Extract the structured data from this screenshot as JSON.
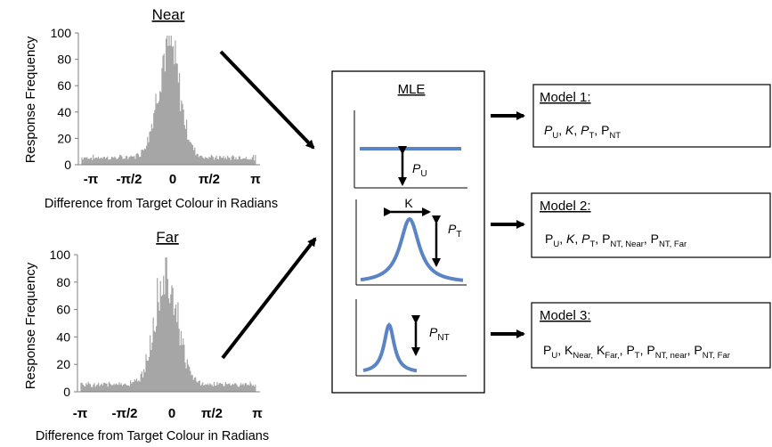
{
  "histograms": [
    {
      "title": "Near",
      "ylabel": "Response Frequency",
      "xlabel": "Difference from Target Colour in Radians",
      "yticks": [
        "0",
        "20",
        "40",
        "60",
        "80",
        "100"
      ],
      "xticks": [
        "-π",
        "-π/2",
        "0",
        "π/2",
        "π"
      ]
    },
    {
      "title": "Far",
      "ylabel": "Response Frequency",
      "xlabel": "Difference from Target Colour in Radians",
      "yticks": [
        "0",
        "20",
        "40",
        "60",
        "80",
        "100"
      ],
      "xticks": [
        "-π",
        "-π/2",
        "0",
        "π/2",
        "π"
      ]
    }
  ],
  "mle": {
    "title": "MLE",
    "k_label": "K",
    "pu_main": "P",
    "pu_sub": "U",
    "pt_main": "P",
    "pt_sub": "T",
    "pnt_main": "P",
    "pnt_sub": "NT"
  },
  "models": [
    {
      "title": "Model 1:",
      "params": [
        {
          "main": "P",
          "sub": "U",
          "italic": true,
          "sep": ", "
        },
        {
          "main": "K",
          "sub": "",
          "italic": true,
          "sep": ", "
        },
        {
          "main": "P",
          "sub": "T",
          "italic": true,
          "sep": ", "
        },
        {
          "main": "P",
          "sub": "NT",
          "italic": false,
          "sep": ""
        }
      ]
    },
    {
      "title": "Model 2:",
      "params": [
        {
          "main": "P",
          "sub": "U",
          "italic": false,
          "sep": ", "
        },
        {
          "main": "K",
          "sub": "",
          "italic": true,
          "sep": ", "
        },
        {
          "main": "P",
          "sub": "T",
          "italic": true,
          "sep": ", "
        },
        {
          "main": "P",
          "sub": "NT, Near",
          "italic": false,
          "sep": ", "
        },
        {
          "main": "P",
          "sub": "NT, Far",
          "italic": false,
          "sep": ""
        }
      ]
    },
    {
      "title": "Model 3:",
      "params": [
        {
          "main": "P",
          "sub": "U",
          "italic": false,
          "sep": ", "
        },
        {
          "main": "K",
          "sub": "Near,",
          "italic": false,
          "sep": " "
        },
        {
          "main": "K",
          "sub": "Far,",
          "italic": false,
          "sep": ", "
        },
        {
          "main": "P",
          "sub": "T",
          "italic": false,
          "sep": ", "
        },
        {
          "main": "P",
          "sub": "NT, near",
          "italic": false,
          "sep": ", "
        },
        {
          "main": "P",
          "sub": "NT, Far",
          "italic": false,
          "sep": ""
        }
      ]
    }
  ],
  "colors": {
    "bars": "#a6a6a6",
    "curve": "#5b84c4",
    "axis": "#7f7f7f"
  }
}
